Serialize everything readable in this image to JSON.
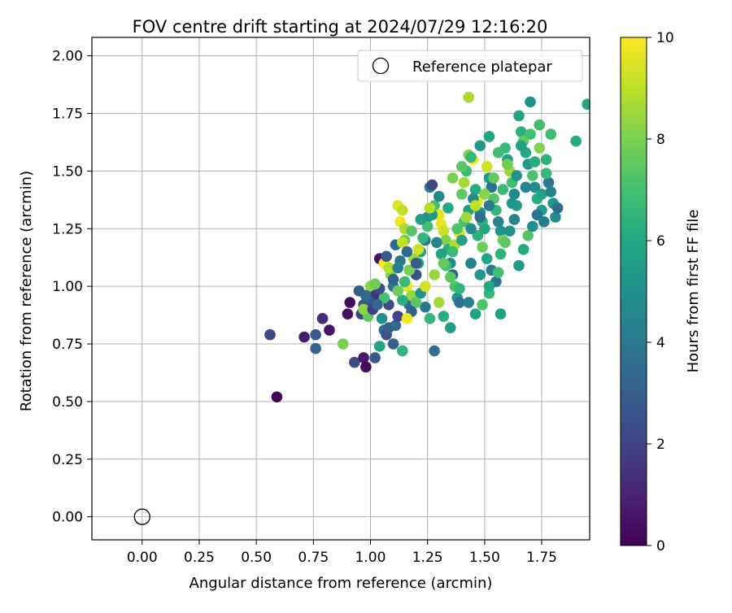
{
  "chart_data": {
    "type": "scatter",
    "title": "FOV centre drift starting at 2024/07/29 12:16:20",
    "xlabel": "Angular distance from reference (arcmin)",
    "ylabel": "Rotation from reference (arcmin)",
    "xlim": [
      -0.22,
      1.96
    ],
    "ylim": [
      -0.1,
      2.08
    ],
    "xticks": [
      "0.00",
      "0.25",
      "0.50",
      "0.75",
      "1.00",
      "1.25",
      "1.50",
      "1.75"
    ],
    "xtick_values": [
      0,
      0.25,
      0.5,
      0.75,
      1.0,
      1.25,
      1.5,
      1.75
    ],
    "yticks": [
      "0.00",
      "0.25",
      "0.50",
      "0.75",
      "1.00",
      "1.25",
      "1.50",
      "1.75",
      "2.00"
    ],
    "ytick_values": [
      0,
      0.25,
      0.5,
      0.75,
      1.0,
      1.25,
      1.5,
      1.75,
      2.0
    ],
    "grid": true,
    "legend": {
      "placement": "top-right",
      "entries": [
        {
          "label": "Reference platepar",
          "marker": "open-circle"
        }
      ]
    },
    "reference_point": {
      "x": 0.0,
      "y": 0.0
    },
    "colorbar": {
      "label": "Hours from first FF file",
      "colormap": "viridis",
      "range": [
        0,
        10
      ],
      "ticks": [
        "0",
        "2",
        "4",
        "6",
        "8",
        "10"
      ],
      "tick_values": [
        0,
        2,
        4,
        6,
        8,
        10
      ]
    },
    "points": [
      [
        0.59,
        0.52,
        0.1
      ],
      [
        0.56,
        0.79,
        2.2
      ],
      [
        0.71,
        0.78,
        0.8
      ],
      [
        0.76,
        0.73,
        3.2
      ],
      [
        0.79,
        0.86,
        1.2
      ],
      [
        0.82,
        0.81,
        0.5
      ],
      [
        0.76,
        0.79,
        2.8
      ],
      [
        0.9,
        0.88,
        0.4
      ],
      [
        0.91,
        0.93,
        0.3
      ],
      [
        0.93,
        0.67,
        2.3
      ],
      [
        0.97,
        0.69,
        0.7
      ],
      [
        0.98,
        0.65,
        0.3
      ],
      [
        0.96,
        0.88,
        2.0
      ],
      [
        0.95,
        0.98,
        3.0
      ],
      [
        0.97,
        0.92,
        2.5
      ],
      [
        0.99,
        0.87,
        7.5
      ],
      [
        1.0,
        1.0,
        8.2
      ],
      [
        1.02,
        0.96,
        1.5
      ],
      [
        1.02,
        0.69,
        2.8
      ],
      [
        1.04,
        0.74,
        5.8
      ],
      [
        1.05,
        0.86,
        5.0
      ],
      [
        1.06,
        0.81,
        3.5
      ],
      [
        1.07,
        0.79,
        2.6
      ],
      [
        1.08,
        0.82,
        3.0
      ],
      [
        1.04,
        1.12,
        0.5
      ],
      [
        1.06,
        1.1,
        9.9
      ],
      [
        1.08,
        0.92,
        2.2
      ],
      [
        1.09,
        1.05,
        8.0
      ],
      [
        1.1,
        1.0,
        4.0
      ],
      [
        1.1,
        0.75,
        3.0
      ],
      [
        1.11,
        0.83,
        3.4
      ],
      [
        1.12,
        0.87,
        2.0
      ],
      [
        1.14,
        0.72,
        6.5
      ],
      [
        1.12,
        1.35,
        9.5
      ],
      [
        1.14,
        1.33,
        9.0
      ],
      [
        1.13,
        1.28,
        9.8
      ],
      [
        1.15,
        1.25,
        8.8
      ],
      [
        1.15,
        1.2,
        7.8
      ],
      [
        1.16,
        1.0,
        9.7
      ],
      [
        1.17,
        0.92,
        3.5
      ],
      [
        1.18,
        0.96,
        8.4
      ],
      [
        1.2,
        1.05,
        2.5
      ],
      [
        1.21,
        1.1,
        6.0
      ],
      [
        1.22,
        1.15,
        5.5
      ],
      [
        1.24,
        1.2,
        3.8
      ],
      [
        1.25,
        1.3,
        4.5
      ],
      [
        1.26,
        1.43,
        4.3
      ],
      [
        1.27,
        1.44,
        2.1
      ],
      [
        1.28,
        1.35,
        7.0
      ],
      [
        1.3,
        1.31,
        9.6
      ],
      [
        1.31,
        1.27,
        9.7
      ],
      [
        1.32,
        1.24,
        9.2
      ],
      [
        1.33,
        1.2,
        8.1
      ],
      [
        1.34,
        1.16,
        6.2
      ],
      [
        1.35,
        1.1,
        4.8
      ],
      [
        1.36,
        1.05,
        3.1
      ],
      [
        1.37,
        1.0,
        7.2
      ],
      [
        1.38,
        0.95,
        5.2
      ],
      [
        1.39,
        0.93,
        3.6
      ],
      [
        1.4,
        1.4,
        7.5
      ],
      [
        1.41,
        1.45,
        8.6
      ],
      [
        1.42,
        1.5,
        6.8
      ],
      [
        1.43,
        1.57,
        8.1
      ],
      [
        1.43,
        1.82,
        8.7
      ],
      [
        1.45,
        1.55,
        9.9
      ],
      [
        1.46,
        1.42,
        6.1
      ],
      [
        1.47,
        1.37,
        9.8
      ],
      [
        1.48,
        1.32,
        4.9
      ],
      [
        1.49,
        1.28,
        6.4
      ],
      [
        1.5,
        1.25,
        5.9
      ],
      [
        1.51,
        1.52,
        9.3
      ],
      [
        1.52,
        1.47,
        5.4
      ],
      [
        1.53,
        1.43,
        3.7
      ],
      [
        1.54,
        1.38,
        7.3
      ],
      [
        1.55,
        1.33,
        6.6
      ],
      [
        1.56,
        1.28,
        4.4
      ],
      [
        1.57,
        1.24,
        5.1
      ],
      [
        1.58,
        1.2,
        7.9
      ],
      [
        1.59,
        1.6,
        6.7
      ],
      [
        1.6,
        1.55,
        5.7
      ],
      [
        1.61,
        1.5,
        8.5
      ],
      [
        1.62,
        1.45,
        6.9
      ],
      [
        1.63,
        1.4,
        4.6
      ],
      [
        1.64,
        1.35,
        5.6
      ],
      [
        1.65,
        1.74,
        5.8
      ],
      [
        1.66,
        1.67,
        6.3
      ],
      [
        1.67,
        1.63,
        7.6
      ],
      [
        1.68,
        1.58,
        6.0
      ],
      [
        1.69,
        1.53,
        5.3
      ],
      [
        1.7,
        1.8,
        5.0
      ],
      [
        1.71,
        1.48,
        7.1
      ],
      [
        1.72,
        1.43,
        4.7
      ],
      [
        1.73,
        1.38,
        6.2
      ],
      [
        1.74,
        1.7,
        6.9
      ],
      [
        1.75,
        1.33,
        5.5
      ],
      [
        1.76,
        1.28,
        4.2
      ],
      [
        1.77,
        1.55,
        6.4
      ],
      [
        1.78,
        1.45,
        3.9
      ],
      [
        1.79,
        1.66,
        6.8
      ],
      [
        1.8,
        1.36,
        5.2
      ],
      [
        1.81,
        1.3,
        4.9
      ],
      [
        1.82,
        1.34,
        3.6
      ],
      [
        1.9,
        1.63,
        6.1
      ],
      [
        1.95,
        1.79,
        5.9
      ],
      [
        1.57,
        0.88,
        5.6
      ],
      [
        1.52,
        0.97,
        6.6
      ],
      [
        1.49,
        0.92,
        7.2
      ],
      [
        1.46,
        0.88,
        5.8
      ],
      [
        1.43,
        0.93,
        4.2
      ],
      [
        1.39,
        0.99,
        6.5
      ],
      [
        1.35,
        0.82,
        5.6
      ],
      [
        1.32,
        0.87,
        6.2
      ],
      [
        1.3,
        0.93,
        8.6
      ],
      [
        1.28,
        0.72,
        3.7
      ],
      [
        1.26,
        0.86,
        6.6
      ],
      [
        1.24,
        0.91,
        4.1
      ],
      [
        1.22,
        0.97,
        5.0
      ],
      [
        1.2,
        0.93,
        7.4
      ],
      [
        1.18,
        0.89,
        3.2
      ],
      [
        1.16,
        0.86,
        9.8
      ],
      [
        1.14,
        0.94,
        6.3
      ],
      [
        1.12,
        0.98,
        7.7
      ],
      [
        1.1,
        1.03,
        3.0
      ],
      [
        1.08,
        1.08,
        8.9
      ],
      [
        1.06,
        0.95,
        7.0
      ],
      [
        1.04,
        0.99,
        2.4
      ],
      [
        1.02,
        1.01,
        7.8
      ],
      [
        1.0,
        0.93,
        2.7
      ],
      [
        0.98,
        0.96,
        3.4
      ],
      [
        0.97,
        0.9,
        8.3
      ],
      [
        0.88,
        0.75,
        8.0
      ],
      [
        1.01,
        0.9,
        1.8
      ],
      [
        1.03,
        0.92,
        3.3
      ],
      [
        1.07,
        1.13,
        2.9
      ],
      [
        1.11,
        1.18,
        3.5
      ],
      [
        1.13,
        1.11,
        4.0
      ],
      [
        1.15,
        1.02,
        6.7
      ],
      [
        1.17,
        1.07,
        7.9
      ],
      [
        1.19,
        1.12,
        8.4
      ],
      [
        1.21,
        1.16,
        9.2
      ],
      [
        1.23,
        1.21,
        6.5
      ],
      [
        1.25,
        1.26,
        7.0
      ],
      [
        1.27,
        1.31,
        5.3
      ],
      [
        1.29,
        1.19,
        4.5
      ],
      [
        1.31,
        1.14,
        5.7
      ],
      [
        1.33,
        1.09,
        6.9
      ],
      [
        1.35,
        1.04,
        7.4
      ],
      [
        1.37,
        1.18,
        8.8
      ],
      [
        1.39,
        1.23,
        9.4
      ],
      [
        1.41,
        1.28,
        7.1
      ],
      [
        1.43,
        1.33,
        5.5
      ],
      [
        1.45,
        1.38,
        4.8
      ],
      [
        1.47,
        1.22,
        6.3
      ],
      [
        1.49,
        1.17,
        7.7
      ],
      [
        1.51,
        1.12,
        5.9
      ],
      [
        1.53,
        1.07,
        4.3
      ],
      [
        1.55,
        1.02,
        3.8
      ],
      [
        1.57,
        1.14,
        6.4
      ],
      [
        1.59,
        1.19,
        7.5
      ],
      [
        1.61,
        1.24,
        5.0
      ],
      [
        1.63,
        1.29,
        4.6
      ],
      [
        1.65,
        1.09,
        5.4
      ],
      [
        1.67,
        1.16,
        6.1
      ],
      [
        1.69,
        1.22,
        7.3
      ],
      [
        1.71,
        1.26,
        4.9
      ],
      [
        1.73,
        1.31,
        3.9
      ],
      [
        1.75,
        1.4,
        5.8
      ],
      [
        1.77,
        1.49,
        6.6
      ],
      [
        1.79,
        1.41,
        4.4
      ],
      [
        1.62,
        1.36,
        5.2
      ],
      [
        1.58,
        1.42,
        6.8
      ],
      [
        1.54,
        1.47,
        7.6
      ],
      [
        1.5,
        1.4,
        8.2
      ],
      [
        1.46,
        1.35,
        9.0
      ],
      [
        1.42,
        1.3,
        8.5
      ],
      [
        1.38,
        1.25,
        7.2
      ],
      [
        1.34,
        1.34,
        6.0
      ],
      [
        1.3,
        1.39,
        4.7
      ],
      [
        1.26,
        1.34,
        8.9
      ],
      [
        1.22,
        1.29,
        5.6
      ],
      [
        1.18,
        1.24,
        7.3
      ],
      [
        1.14,
        1.19,
        9.1
      ],
      [
        1.36,
        1.47,
        8.0
      ],
      [
        1.4,
        1.52,
        7.4
      ],
      [
        1.44,
        1.56,
        6.6
      ],
      [
        1.48,
        1.61,
        5.3
      ],
      [
        1.52,
        1.65,
        6.0
      ],
      [
        1.56,
        1.58,
        6.9
      ],
      [
        1.6,
        1.53,
        7.8
      ],
      [
        1.64,
        1.48,
        5.1
      ],
      [
        1.68,
        1.43,
        4.5
      ],
      [
        1.72,
        1.54,
        6.2
      ],
      [
        1.66,
        1.61,
        5.7
      ],
      [
        1.7,
        1.66,
        7.0
      ],
      [
        1.74,
        1.6,
        8.1
      ],
      [
        1.52,
        1.35,
        4.1
      ],
      [
        1.48,
        1.3,
        3.5
      ],
      [
        1.44,
        1.25,
        4.9
      ],
      [
        1.4,
        1.2,
        5.8
      ],
      [
        1.36,
        1.15,
        6.7
      ],
      [
        1.32,
        1.1,
        7.6
      ],
      [
        1.28,
        1.05,
        8.4
      ],
      [
        1.24,
        1.0,
        9.3
      ],
      [
        1.2,
        1.1,
        2.8
      ],
      [
        1.16,
        1.15,
        3.3
      ],
      [
        1.12,
        1.08,
        4.2
      ],
      [
        1.44,
        1.1,
        4.4
      ],
      [
        1.48,
        1.05,
        5.2
      ],
      [
        1.52,
        1.0,
        6.0
      ],
      [
        1.56,
        1.06,
        7.0
      ]
    ]
  }
}
